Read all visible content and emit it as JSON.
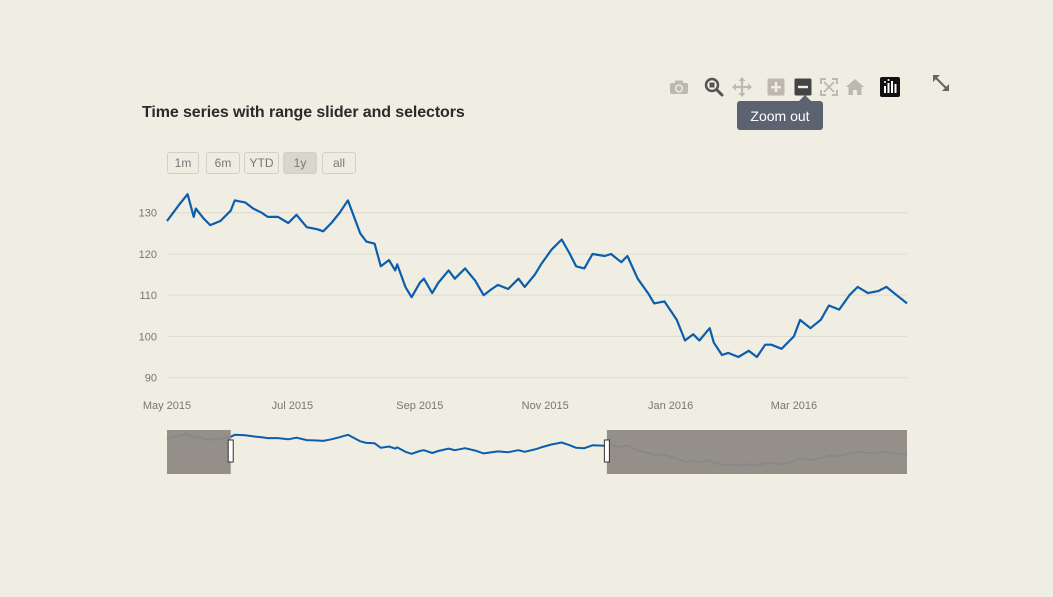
{
  "chart_data": {
    "type": "line",
    "title": "Time series with range slider and selectors",
    "xlabel": "",
    "ylabel": "",
    "x_range": [
      "2015-05-01",
      "2016-04-25"
    ],
    "ylim": [
      87,
      136
    ],
    "yticks": [
      90,
      100,
      110,
      120,
      130
    ],
    "xticks": [
      {
        "date": "2015-05-01",
        "label": "May 2015"
      },
      {
        "date": "2015-07-01",
        "label": "Jul 2015"
      },
      {
        "date": "2015-09-01",
        "label": "Sep 2015"
      },
      {
        "date": "2015-11-01",
        "label": "Nov 2015"
      },
      {
        "date": "2016-01-01",
        "label": "Jan 2016"
      },
      {
        "date": "2016-03-01",
        "label": "Mar 2016"
      }
    ],
    "grid": true,
    "color": "#0b5eab",
    "x": [
      "2015-05-01",
      "2015-05-04",
      "2015-05-07",
      "2015-05-11",
      "2015-05-14",
      "2015-05-15",
      "2015-05-19",
      "2015-05-22",
      "2015-05-27",
      "2015-06-01",
      "2015-06-03",
      "2015-06-08",
      "2015-06-12",
      "2015-06-16",
      "2015-06-19",
      "2015-06-24",
      "2015-06-29",
      "2015-07-03",
      "2015-07-08",
      "2015-07-13",
      "2015-07-16",
      "2015-07-20",
      "2015-07-24",
      "2015-07-28",
      "2015-08-03",
      "2015-08-06",
      "2015-08-10",
      "2015-08-13",
      "2015-08-17",
      "2015-08-20",
      "2015-08-21",
      "2015-08-25",
      "2015-08-28",
      "2015-09-01",
      "2015-09-03",
      "2015-09-07",
      "2015-09-10",
      "2015-09-15",
      "2015-09-18",
      "2015-09-23",
      "2015-09-28",
      "2015-10-02",
      "2015-10-06",
      "2015-10-09",
      "2015-10-14",
      "2015-10-19",
      "2015-10-22",
      "2015-10-27",
      "2015-10-30",
      "2015-11-04",
      "2015-11-09",
      "2015-11-13",
      "2015-11-16",
      "2015-11-20",
      "2015-11-24",
      "2015-11-30",
      "2015-12-03",
      "2015-12-08",
      "2015-12-11",
      "2015-12-16",
      "2015-12-21",
      "2015-12-24",
      "2015-12-29",
      "2016-01-04",
      "2016-01-08",
      "2016-01-12",
      "2016-01-15",
      "2016-01-20",
      "2016-01-22",
      "2016-01-26",
      "2016-01-29",
      "2016-02-03",
      "2016-02-08",
      "2016-02-12",
      "2016-02-16",
      "2016-02-19",
      "2016-02-24",
      "2016-03-01",
      "2016-03-04",
      "2016-03-09",
      "2016-03-14",
      "2016-03-18",
      "2016-03-23",
      "2016-03-28",
      "2016-04-01",
      "2016-04-06",
      "2016-04-11",
      "2016-04-15",
      "2016-04-20",
      "2016-04-25"
    ],
    "y": [
      128,
      130,
      132,
      134.5,
      129,
      131,
      128.5,
      127,
      128,
      130.5,
      133,
      132.5,
      131,
      130,
      129,
      129,
      127.5,
      129.5,
      126.5,
      126,
      125.5,
      127.5,
      130,
      133,
      125,
      123,
      122.5,
      117,
      118.5,
      116,
      117.5,
      112,
      109.5,
      113,
      114,
      110.5,
      113,
      116,
      114,
      116.5,
      113.5,
      110,
      111.5,
      112.5,
      111.5,
      114,
      112,
      115,
      117.5,
      121,
      123.5,
      120,
      117,
      116.5,
      120,
      119.5,
      120,
      118,
      119.5,
      114,
      110.5,
      108,
      108.5,
      104,
      99,
      100.5,
      99,
      102,
      98.5,
      95.5,
      96,
      95,
      96.5,
      95,
      98,
      98,
      97,
      100,
      104,
      102,
      104,
      107.5,
      106.5,
      110,
      112,
      110.5,
      111,
      112,
      110,
      108
    ],
    "range_selector": [
      "1m",
      "6m",
      "YTD",
      "1y",
      "all"
    ],
    "range_selector_active": "1y",
    "range_slider": {
      "visible_range": [
        "2015-06-01",
        "2015-12-01"
      ]
    }
  },
  "modebar": {
    "icons": [
      "camera-icon",
      "zoom-icon",
      "pan-icon",
      "zoom-in-icon",
      "zoom-out-icon",
      "autoscale-icon",
      "reset-axes-icon",
      "plotly-logo-icon"
    ],
    "tooltip": "Zoom out"
  },
  "colors": {
    "background": "#f0ede3",
    "line": "#0b5eab",
    "grid": "#dedad0",
    "slider_mask": "#8e8b84",
    "tooltip_bg": "#5b6270"
  }
}
